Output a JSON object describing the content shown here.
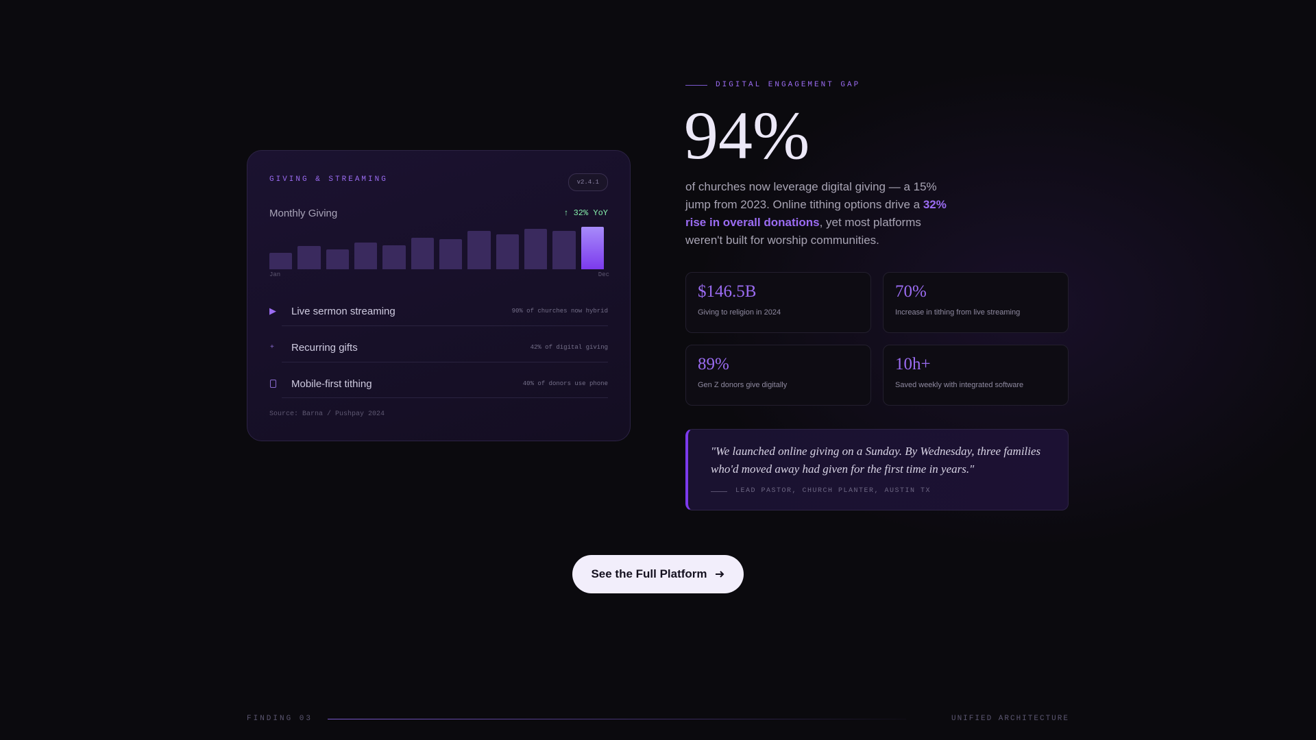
{
  "card": {
    "title": "GIVING & STREAMING",
    "badge": "v2.4.1",
    "features": [
      {
        "label": "Live sermon streaming",
        "note": "90% of churches now hybrid"
      },
      {
        "label": "Recurring gifts",
        "note": "42% of digital giving"
      },
      {
        "label": "Mobile-first tithing",
        "note": "40% of donors use phone"
      }
    ],
    "source": "Source: Barna / Pushpay 2024"
  },
  "chart_data": {
    "type": "bar",
    "title": "Monthly Giving",
    "annotation": "↑ 32% YoY",
    "categories": [
      "Jan",
      null,
      null,
      null,
      null,
      null,
      null,
      null,
      null,
      null,
      null,
      "Dec"
    ],
    "values": [
      20,
      28,
      24,
      32,
      29,
      38,
      36,
      46,
      42,
      48,
      46,
      51
    ],
    "color": "#3a2a5e",
    "highlight_color": "#a78bfa"
  },
  "eyebrow": "DIGITAL ENGAGEMENT GAP",
  "headline": "94%",
  "paragraph": {
    "before": "of churches now leverage digital giving — a 15% jump from 2023. Online tithing options drive a ",
    "highlight": "32% rise in overall donations",
    "after": ", yet most platforms weren't built for worship communities."
  },
  "stats": [
    {
      "value": "$146.5B",
      "label": "Giving to religion in 2024"
    },
    {
      "value": "70%",
      "label": "Increase in tithing from live streaming"
    },
    {
      "value": "89%",
      "label": "Gen Z donors give digitally"
    },
    {
      "value": "10h+",
      "label": "Saved weekly with integrated software"
    }
  ],
  "quote": {
    "text": "\"We launched online giving on a Sunday. By Wednesday, three families who'd moved away had given for the first time in years.\"",
    "attribution": "LEAD PASTOR, CHURCH PLANTER, AUSTIN TX"
  },
  "button": "See the Full Platform",
  "footer": {
    "left": "FINDING 03",
    "right": "UNIFIED ARCHITECTURE"
  }
}
